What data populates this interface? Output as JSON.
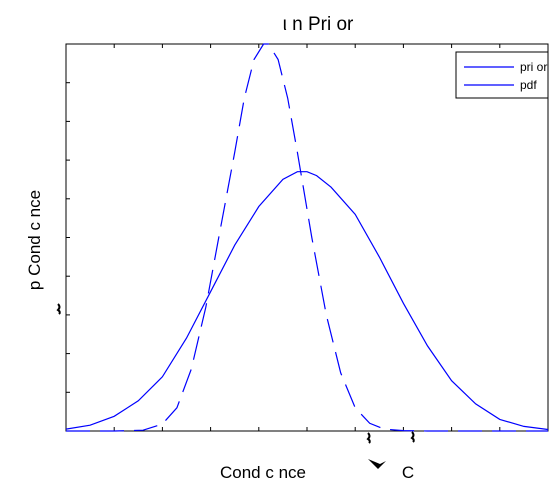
{
  "chart_data": {
    "type": "line",
    "title": "ι n Pri or",
    "xlabel": "Cond c nce",
    "xlabel_extra": "C",
    "ylabel": "p Cond c nce",
    "grid": false,
    "legend_placement": "top-right",
    "xlim": [
      0,
      1
    ],
    "ylim": [
      0,
      1
    ],
    "series": [
      {
        "name": "pri or",
        "style": "dashed",
        "color": "#0000ff",
        "x": [
          0.0,
          0.1,
          0.16,
          0.2,
          0.23,
          0.26,
          0.29,
          0.32,
          0.35,
          0.37,
          0.39,
          0.41,
          0.42,
          0.44,
          0.46,
          0.48,
          0.51,
          0.54,
          0.57,
          0.6,
          0.63,
          0.66,
          0.7,
          0.75,
          0.8,
          0.9,
          1.0
        ],
        "y": [
          0.0,
          0.0,
          0.002,
          0.018,
          0.06,
          0.16,
          0.32,
          0.52,
          0.72,
          0.86,
          0.96,
          1.0,
          1.0,
          0.96,
          0.86,
          0.72,
          0.5,
          0.3,
          0.15,
          0.06,
          0.02,
          0.005,
          0.001,
          0.0,
          0.0,
          0.0,
          0.0
        ]
      },
      {
        "name": "pdf",
        "style": "solid",
        "color": "#0000ff",
        "x": [
          0.0,
          0.05,
          0.1,
          0.15,
          0.2,
          0.25,
          0.3,
          0.35,
          0.4,
          0.45,
          0.48,
          0.5,
          0.52,
          0.55,
          0.6,
          0.65,
          0.7,
          0.75,
          0.8,
          0.85,
          0.9,
          0.95,
          1.0
        ],
        "y": [
          0.005,
          0.015,
          0.038,
          0.078,
          0.14,
          0.24,
          0.36,
          0.48,
          0.58,
          0.65,
          0.67,
          0.67,
          0.66,
          0.63,
          0.56,
          0.45,
          0.33,
          0.22,
          0.13,
          0.07,
          0.03,
          0.012,
          0.004
        ]
      }
    ]
  }
}
